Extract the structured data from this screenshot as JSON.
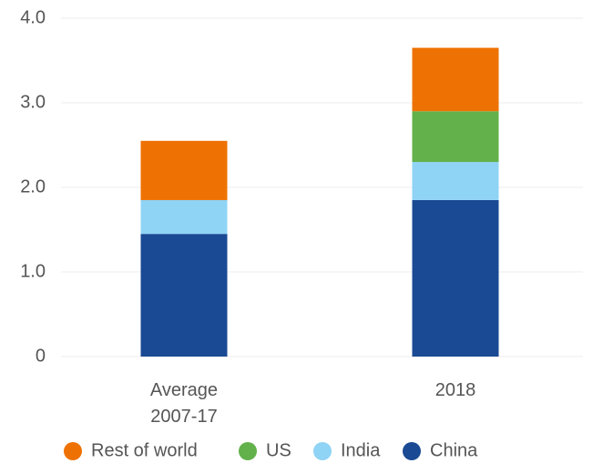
{
  "chart_data": {
    "type": "stacked_bar",
    "categories": [
      "Average 2007-17",
      "2018"
    ],
    "series": [
      {
        "name": "China",
        "color": "#1a4a93",
        "values": [
          1.45,
          1.85
        ]
      },
      {
        "name": "India",
        "color": "#8fd3f5",
        "values": [
          0.4,
          0.45
        ]
      },
      {
        "name": "US",
        "color": "#62b14b",
        "values": [
          0,
          0.6
        ]
      },
      {
        "name": "Rest of world",
        "color": "#ee7203",
        "values": [
          0.7,
          0.75
        ]
      }
    ],
    "ylim": [
      0,
      4
    ],
    "yticks": [
      0,
      {
        "value": 1,
        "label": "1.0"
      },
      {
        "value": 2,
        "label": "2.0"
      },
      {
        "value": 3,
        "label": "3.0"
      },
      {
        "value": 4,
        "label": "4.0"
      }
    ],
    "grid": true
  }
}
